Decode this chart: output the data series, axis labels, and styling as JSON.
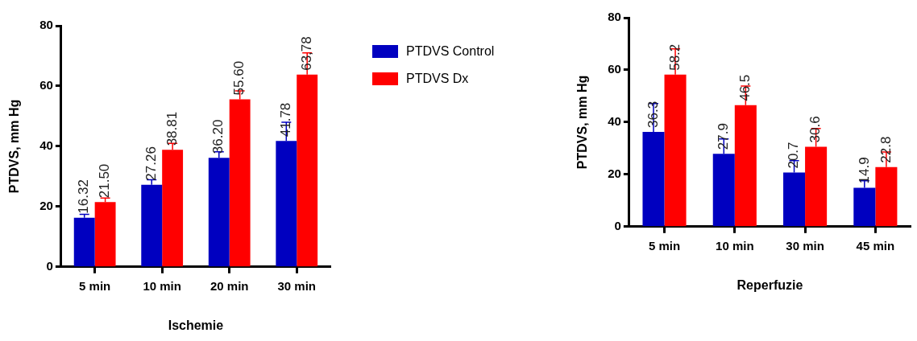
{
  "chart_data": [
    {
      "type": "bar",
      "xlabel": "Ischemie",
      "ylabel": "PTDVS, mm Hg",
      "categories": [
        "5 min",
        "10 min",
        "20 min",
        "30 min"
      ],
      "ylim": [
        0,
        80
      ],
      "yticks": [
        0,
        20,
        40,
        60,
        80
      ],
      "grid": false,
      "legend": "right",
      "series": [
        {
          "name": "PTDVS Control",
          "color": "#0000c0",
          "values": [
            16.32,
            27.26,
            36.2,
            41.78
          ],
          "errors": [
            [
              16.32,
              17.4
            ],
            [
              27.26,
              28.9
            ],
            [
              36.2,
              38.2
            ],
            [
              41.78,
              48.0
            ]
          ],
          "value_labels": [
            "16.32",
            "27.26",
            "36.20",
            "41.78"
          ]
        },
        {
          "name": "PTDVS Dx",
          "color": "#ff0000",
          "values": [
            21.5,
            38.81,
            55.6,
            63.78
          ],
          "errors": [
            [
              21.5,
              22.8
            ],
            [
              38.81,
              41.0
            ],
            [
              55.6,
              58.4
            ],
            [
              63.78,
              71.0
            ]
          ],
          "value_labels": [
            "21.50",
            "38.81",
            "55.60",
            "63,78"
          ]
        }
      ]
    },
    {
      "type": "bar",
      "xlabel": "Reperfuzie",
      "ylabel": "PTDVS, mm Hg",
      "categories": [
        "5 min",
        "10 min",
        "30 min",
        "45 min"
      ],
      "ylim": [
        0,
        80
      ],
      "yticks": [
        0,
        20,
        40,
        60,
        80
      ],
      "grid": false,
      "series": [
        {
          "color": "#0000c0",
          "values": [
            36.3,
            27.9,
            20.7,
            14.9
          ],
          "errors": [
            [
              36.3,
              47.1
            ],
            [
              27.9,
              33.6
            ],
            [
              20.7,
              25.3
            ],
            [
              14.9,
              17.6
            ]
          ],
          "value_labels": [
            "36.3",
            "27.9",
            "20.7",
            "14.9"
          ]
        },
        {
          "color": "#ff0000",
          "values": [
            58.2,
            46.5,
            30.6,
            22.8
          ],
          "errors": [
            [
              58.2,
              68.1
            ],
            [
              46.5,
              53.8
            ],
            [
              30.6,
              37.6
            ],
            [
              22.8,
              28.6
            ]
          ],
          "value_labels": [
            "58.2",
            "46.5",
            "30.6",
            "22.8"
          ]
        }
      ]
    }
  ]
}
